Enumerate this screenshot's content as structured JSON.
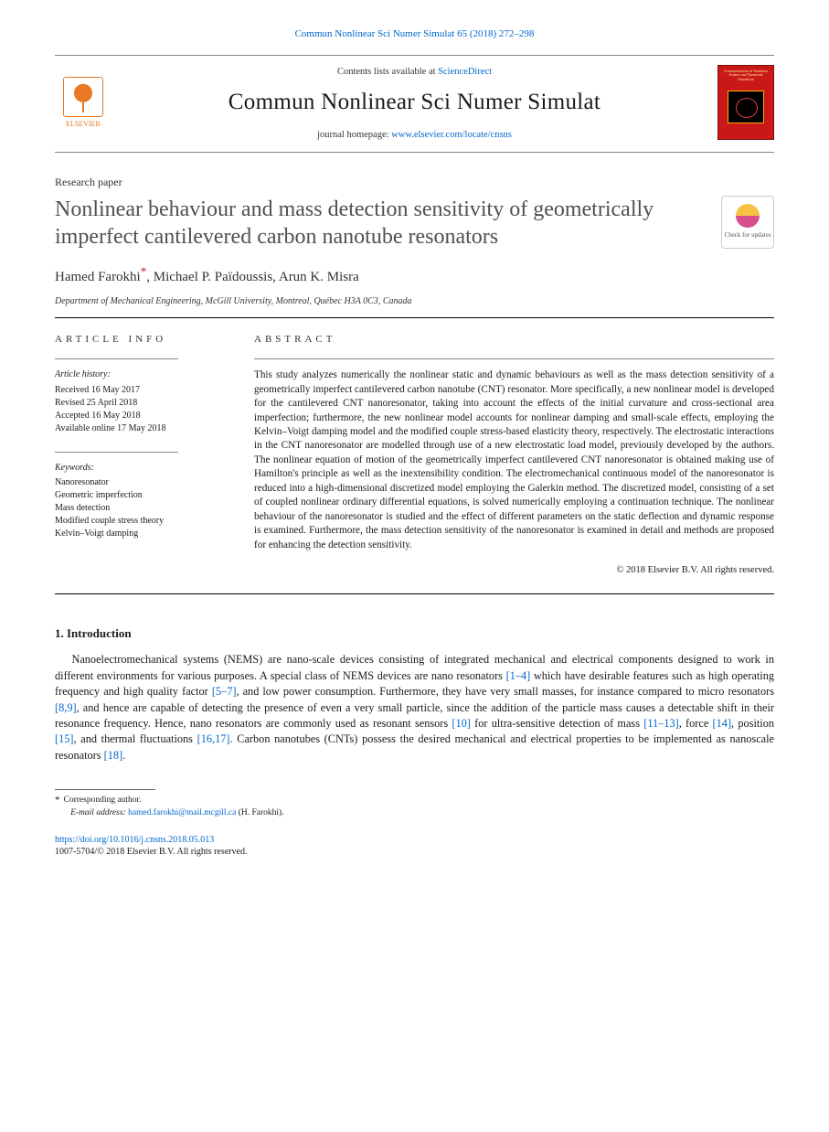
{
  "citation": "Commun Nonlinear Sci Numer Simulat 65 (2018) 272–298",
  "masthead": {
    "publisher": "ELSEVIER",
    "contents_prefix": "Contents lists available at ",
    "contents_link": "ScienceDirect",
    "journal": "Commun Nonlinear Sci Numer Simulat",
    "homepage_prefix": "journal homepage: ",
    "homepage_url": "www.elsevier.com/locate/cnsns",
    "cover_caption": "Communications in Nonlinear Science and Numerical Simulation"
  },
  "article_type": "Research paper",
  "title": "Nonlinear behaviour and mass detection sensitivity of geometrically imperfect cantilevered carbon nanotube resonators",
  "updates_badge": "Check for updates",
  "authors": {
    "a1": "Hamed Farokhi",
    "a2": "Michael P. Païdoussis",
    "a3": "Arun K. Misra",
    "corr_marker": "*",
    "separator": ", "
  },
  "affiliation": "Department of Mechanical Engineering, McGill University, Montreal, Québec H3A 0C3, Canada",
  "article_info": {
    "heading": "article info",
    "history_label": "Article history:",
    "received": "Received 16 May 2017",
    "revised": "Revised 25 April 2018",
    "accepted": "Accepted 16 May 2018",
    "online": "Available online 17 May 2018",
    "keywords_label": "Keywords:",
    "keywords": [
      "Nanoresonator",
      "Geometric imperfection",
      "Mass detection",
      "Modified couple stress theory",
      "Kelvin–Voigt damping"
    ]
  },
  "abstract": {
    "heading": "abstract",
    "text": "This study analyzes numerically the nonlinear static and dynamic behaviours as well as the mass detection sensitivity of a geometrically imperfect cantilevered carbon nanotube (CNT) resonator. More specifically, a new nonlinear model is developed for the cantilevered CNT nanoresonator, taking into account the effects of the initial curvature and cross-sectional area imperfection; furthermore, the new nonlinear model accounts for nonlinear damping and small-scale effects, employing the Kelvin–Voigt damping model and the modified couple stress-based elasticity theory, respectively. The electrostatic interactions in the CNT nanoresonator are modelled through use of a new electrostatic load model, previously developed by the authors. The nonlinear equation of motion of the geometrically imperfect cantilevered CNT nanoresonator is obtained making use of Hamilton's principle as well as the inextensibility condition. The electromechanical continuous model of the nanoresonator is reduced into a high-dimensional discretized model employing the Galerkin method. The discretized model, consisting of a set of coupled nonlinear ordinary differential equations, is solved numerically employing a continuation technique. The nonlinear behaviour of the nanoresonator is studied and the effect of different parameters on the static deflection and dynamic response is examined. Furthermore, the mass detection sensitivity of the nanoresonator is examined in detail and methods are proposed for enhancing the detection sensitivity.",
    "copyright": "© 2018 Elsevier B.V. All rights reserved."
  },
  "intro": {
    "heading": "1. Introduction",
    "p1a": "Nanoelectromechanical systems (NEMS) are nano-scale devices consisting of integrated mechanical and electrical components designed to work in different environments for various purposes. A special class of NEMS devices are nano resonators ",
    "r1": "[1–4]",
    "p1b": " which have desirable features such as high operating frequency and high quality factor ",
    "r2": "[5–7]",
    "p1c": ", and low power consumption. Furthermore, they have very small masses, for instance compared to micro resonators ",
    "r3": "[8,9]",
    "p1d": ", and hence are capable of detecting the presence of even a very small particle, since the addition of the particle mass causes a detectable shift in their resonance frequency. Hence, nano resonators are commonly used as resonant sensors ",
    "r4": "[10]",
    "p1e": " for ultra-sensitive detection of mass ",
    "r5": "[11–13]",
    "p1f": ", force ",
    "r6": "[14]",
    "p1g": ", position ",
    "r7": "[15]",
    "p1h": ", and thermal fluctuations ",
    "r8": "[16,17]",
    "p1i": ". Carbon nanotubes (CNTs) possess the desired mechanical and electrical properties to be implemented as nanoscale resonators ",
    "r9": "[18]",
    "p1j": "."
  },
  "footnote": {
    "corr_label": "Corresponding author.",
    "email_label": "E-mail address:",
    "email": "hamed.farokhi@mail.mcgill.ca",
    "email_name": "(H. Farokhi)."
  },
  "footer": {
    "doi": "https://doi.org/10.1016/j.cnsns.2018.05.013",
    "issn_line": "1007-5704/© 2018 Elsevier B.V. All rights reserved."
  }
}
